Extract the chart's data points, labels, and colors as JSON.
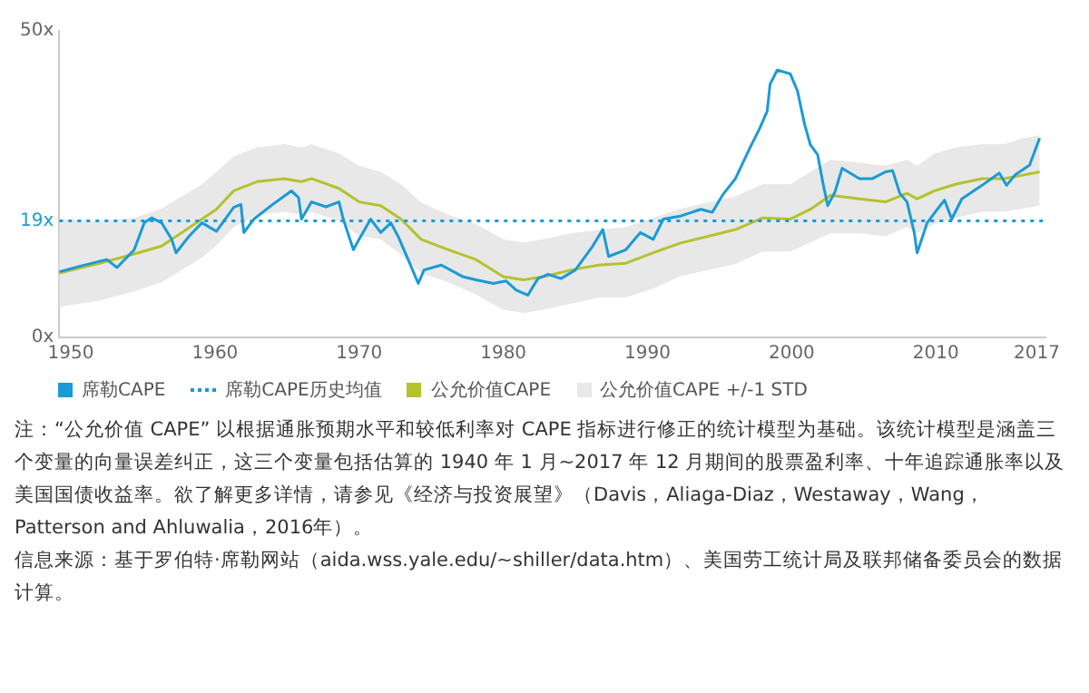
{
  "chart_data": {
    "type": "line",
    "legend": "bottom",
    "grid": false,
    "marker": "none",
    "xlim": [
      1949.2,
      2017.6
    ],
    "xticks": [
      1950,
      1960,
      1970,
      1980,
      1990,
      2000,
      2010,
      2017
    ],
    "ylim": [
      0,
      50
    ],
    "yticks": [
      {
        "value": 0,
        "label": "0x"
      },
      {
        "value": 19,
        "label": "19x"
      },
      {
        "value": 50,
        "label": "50x"
      }
    ],
    "series": [
      {
        "name": "席勒CAPE",
        "type": "line",
        "color": "#1a9ad6",
        "x": [
          1949.2,
          1950.6,
          1952.5,
          1953.2,
          1954.4,
          1955.1,
          1955.6,
          1956.3,
          1957.0,
          1957.3,
          1958.2,
          1959.1,
          1960.1,
          1961.3,
          1961.8,
          1962.0,
          1962.7,
          1963.9,
          1965.3,
          1965.8,
          1966.0,
          1966.7,
          1967.7,
          1968.6,
          1968.9,
          1969.6,
          1970.0,
          1970.8,
          1971.5,
          1972.2,
          1972.7,
          1973.4,
          1974.1,
          1974.5,
          1975.7,
          1977.2,
          1978.1,
          1979.3,
          1980.2,
          1980.9,
          1981.7,
          1982.4,
          1983.1,
          1984.0,
          1985.0,
          1986.2,
          1986.9,
          1987.3,
          1988.5,
          1989.5,
          1990.4,
          1991.1,
          1992.3,
          1993.7,
          1994.5,
          1995.2,
          1996.1,
          1997.1,
          1997.8,
          1998.3,
          1998.5,
          1999.0,
          1999.9,
          2000.4,
          2000.9,
          2001.3,
          2001.8,
          2002.2,
          2002.5,
          2003.0,
          2003.5,
          2004.7,
          2005.6,
          2006.5,
          2007.0,
          2007.5,
          2008.0,
          2008.5,
          2008.7,
          2009.4,
          2010.1,
          2010.6,
          2011.1,
          2011.8,
          2013.2,
          2014.4,
          2014.9,
          2015.5,
          2016.5,
          2017.2
        ],
        "values": [
          10.7,
          11.6,
          12.7,
          11.4,
          14.3,
          18.7,
          19.5,
          18.7,
          16.0,
          13.8,
          16.5,
          18.7,
          17.3,
          21.2,
          21.7,
          17.1,
          19.3,
          21.5,
          23.9,
          22.8,
          19.3,
          22.1,
          21.3,
          22.1,
          19.3,
          14.3,
          16.0,
          19.3,
          17.1,
          18.7,
          16.5,
          12.7,
          8.8,
          11.0,
          11.8,
          9.9,
          9.4,
          8.8,
          9.2,
          7.7,
          6.9,
          9.6,
          10.3,
          9.6,
          11.0,
          14.9,
          17.6,
          13.2,
          14.3,
          17.1,
          16.0,
          19.3,
          19.8,
          20.9,
          20.4,
          23.2,
          25.9,
          30.9,
          34.2,
          36.9,
          41.3,
          43.6,
          43.0,
          40.2,
          34.7,
          31.4,
          29.8,
          24.8,
          21.5,
          23.7,
          27.6,
          25.9,
          25.9,
          27.0,
          27.2,
          23.5,
          22.1,
          17.1,
          13.8,
          18.7,
          20.9,
          22.4,
          19.3,
          22.6,
          24.8,
          26.8,
          24.8,
          26.5,
          28.1,
          32.5
        ]
      },
      {
        "name": "公允价值CAPE",
        "type": "line",
        "color": "#b5c22c",
        "x": [
          1949.2,
          1952.0,
          1954.4,
          1956.3,
          1957.7,
          1959.1,
          1960.1,
          1961.3,
          1962.9,
          1964.8,
          1966.0,
          1966.7,
          1968.6,
          1970.0,
          1971.5,
          1972.9,
          1974.3,
          1976.2,
          1978.1,
          1980.0,
          1981.4,
          1982.8,
          1984.7,
          1986.6,
          1988.5,
          1990.4,
          1992.3,
          1994.2,
          1996.1,
          1998.0,
          1999.9,
          2001.3,
          2002.7,
          2004.7,
          2006.5,
          2008.0,
          2008.7,
          2009.9,
          2011.4,
          2013.2,
          2014.7,
          2016.1,
          2017.2
        ],
        "values": [
          10.5,
          12.1,
          13.6,
          14.9,
          17.1,
          19.3,
          20.9,
          23.9,
          25.4,
          25.9,
          25.4,
          25.9,
          24.3,
          22.1,
          21.5,
          19.3,
          16.0,
          14.3,
          12.7,
          9.9,
          9.4,
          9.9,
          11.0,
          11.8,
          12.1,
          13.8,
          15.4,
          16.5,
          17.6,
          19.5,
          19.3,
          20.9,
          23.2,
          22.6,
          22.1,
          23.5,
          22.6,
          23.9,
          25.0,
          25.9,
          25.9,
          26.5,
          27.0
        ],
        "upper": [
          19.3,
          19.0,
          19.5,
          21,
          23,
          25,
          27,
          29.5,
          31,
          31.5,
          31,
          31.5,
          30,
          28,
          27,
          25,
          22,
          20,
          18.5,
          16,
          15.5,
          16,
          17,
          17.5,
          18,
          19.5,
          21,
          22,
          23,
          25,
          25,
          27,
          29,
          28.5,
          28,
          29,
          28,
          30,
          31,
          31.5,
          31.5,
          32.5,
          33
        ],
        "lower": [
          5.0,
          6.0,
          7.5,
          9,
          11,
          13,
          15,
          18,
          20,
          20.5,
          20,
          20.5,
          19,
          16.5,
          16,
          13.5,
          10.5,
          9,
          7,
          4.5,
          4,
          4.5,
          5.5,
          6.5,
          6.5,
          8,
          10,
          11,
          12,
          14,
          14,
          15.5,
          17,
          17,
          16.5,
          18,
          17,
          18.5,
          19.5,
          20.5,
          20.5,
          21,
          21.5
        ]
      }
    ],
    "ref_lines": [
      {
        "axis": "y",
        "value": 19,
        "label": "席勒CAPE历史均值",
        "color": "#1a9ad6",
        "line_style": "dotted"
      }
    ],
    "annotations": [
      "公允价值CAPE +/-1 STD",
      "注：“公允价值 CAPE” 以根据通胀预期水平和较低利率对 CAPE 指标进行修正的统计模型为基础。该统计模型是涵盖三个变量的向量误差纠正，这三个变量包括估算的 1940 年 1 月~2017 年 12 月期间的股票盈利率、十年追踪通胀率以及美国国债收益率。欲了解更多详情，请参见《经济与投资展望》（Davis，Aliaga-Diaz，Westaway，Wang，Patterson and Ahluwalia，2016年）。",
      "信息来源：基于罗伯特·席勒网站（aida.wss.yale.edu/~shiller/data.htm）、美国劳工统计局及联邦储备委员会的数据计算。"
    ]
  }
}
